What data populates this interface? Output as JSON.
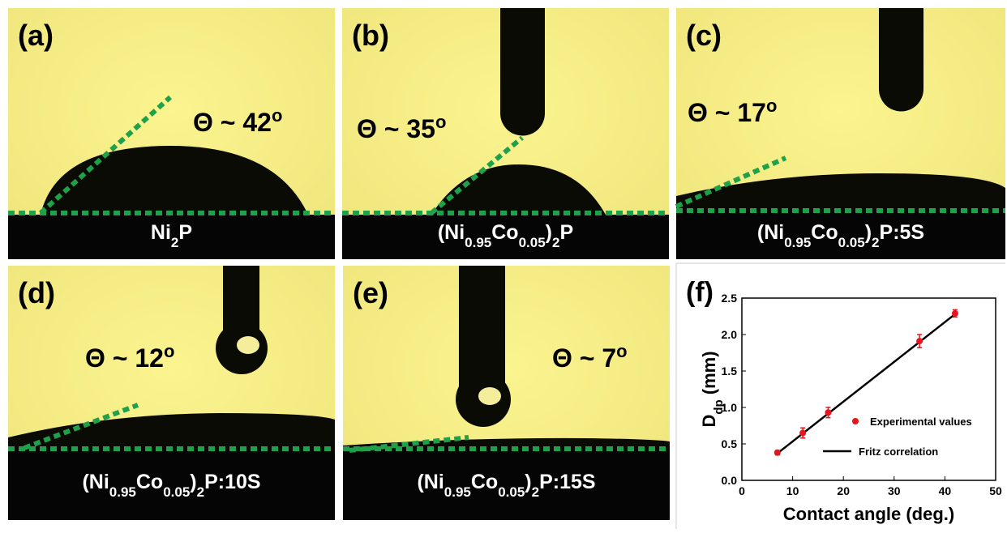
{
  "panels": [
    {
      "label": "(a)",
      "angle": "Θ ~ 42",
      "angle_sup": "o",
      "sample": [
        {
          "text": "Ni"
        },
        {
          "sub": "2"
        },
        {
          "text": "P"
        }
      ]
    },
    {
      "label": "(b)",
      "angle": "Θ ~ 35",
      "angle_sup": "o",
      "sample": [
        {
          "text": "(Ni"
        },
        {
          "sub": "0.95"
        },
        {
          "text": "Co"
        },
        {
          "sub": "0.05"
        },
        {
          "text": ")"
        },
        {
          "sub": "2"
        },
        {
          "text": "P"
        }
      ]
    },
    {
      "label": "(c)",
      "angle": "Θ ~ 17",
      "angle_sup": "o",
      "sample": [
        {
          "text": "(Ni"
        },
        {
          "sub": "0.95"
        },
        {
          "text": "Co"
        },
        {
          "sub": "0.05"
        },
        {
          "text": ")"
        },
        {
          "sub": "2"
        },
        {
          "text": "P:5S"
        }
      ]
    },
    {
      "label": "(d)",
      "angle": "Θ ~ 12",
      "angle_sup": "o",
      "sample": [
        {
          "text": "(Ni"
        },
        {
          "sub": "0.95"
        },
        {
          "text": "Co"
        },
        {
          "sub": "0.05"
        },
        {
          "text": ")"
        },
        {
          "sub": "2"
        },
        {
          "text": "P:10S"
        }
      ]
    },
    {
      "label": "(e)",
      "angle": "Θ ~ 7",
      "angle_sup": "o",
      "sample": [
        {
          "text": "(Ni"
        },
        {
          "sub": "0.95"
        },
        {
          "text": "Co"
        },
        {
          "sub": "0.05"
        },
        {
          "text": ")"
        },
        {
          "sub": "2"
        },
        {
          "text": "P:15S"
        }
      ]
    }
  ],
  "chart_data": {
    "type": "scatter",
    "panel_label": "(f)",
    "xlabel": "Contact angle (deg.)",
    "ylabel": [
      {
        "text": "D"
      },
      {
        "sub": "dp"
      },
      {
        "text": " (mm)"
      }
    ],
    "xlim": [
      0,
      50
    ],
    "xticks": [
      0,
      10,
      20,
      30,
      40,
      50
    ],
    "ylim": [
      0,
      2.5
    ],
    "yticks": [
      {
        "value": 0,
        "label": "0.0"
      },
      0.5,
      {
        "value": 1,
        "label": "1.0"
      },
      1.5,
      {
        "value": 2,
        "label": "2.0"
      },
      2.5
    ],
    "legend": "lower right",
    "series": [
      {
        "name": "Experimental values",
        "color": "#e8141c",
        "x": [
          7,
          12,
          17,
          35,
          42
        ],
        "values": [
          0.38,
          0.65,
          0.93,
          1.91,
          2.29
        ],
        "errors": [
          0.03,
          0.07,
          0.07,
          0.09,
          0.05
        ]
      },
      {
        "name": "Fritz correlation",
        "color": "#000000",
        "x": [
          7,
          42
        ],
        "values": [
          0.37,
          2.28
        ]
      }
    ]
  }
}
